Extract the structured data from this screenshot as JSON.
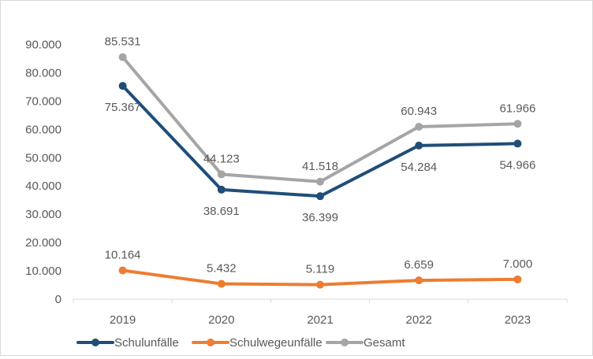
{
  "chart_data": {
    "type": "line",
    "categories": [
      "2019",
      "2020",
      "2021",
      "2022",
      "2023"
    ],
    "y_ticks": [
      "0",
      "10.000",
      "20.000",
      "30.000",
      "40.000",
      "50.000",
      "60.000",
      "70.000",
      "80.000",
      "90.000"
    ],
    "ylim": [
      0,
      90000
    ],
    "grid": false,
    "legend_position": "bottom-left",
    "series": [
      {
        "name": "Schulunfälle",
        "color": "#1f4e79",
        "values": [
          75367,
          38691,
          36399,
          54284,
          54966
        ],
        "labels": [
          "75.367",
          "38.691",
          "36.399",
          "54.284",
          "54.966"
        ]
      },
      {
        "name": "Schulwegeunfälle",
        "color": "#ed7d31",
        "values": [
          10164,
          5432,
          5119,
          6659,
          7000
        ],
        "labels": [
          "10.164",
          "5.432",
          "5.119",
          "6.659",
          "7.000"
        ]
      },
      {
        "name": "Gesamt",
        "color": "#a5a5a5",
        "values": [
          85531,
          44123,
          41518,
          60943,
          61966
        ],
        "labels": [
          "85.531",
          "44.123",
          "41.518",
          "60.943",
          "61.966"
        ]
      }
    ]
  }
}
